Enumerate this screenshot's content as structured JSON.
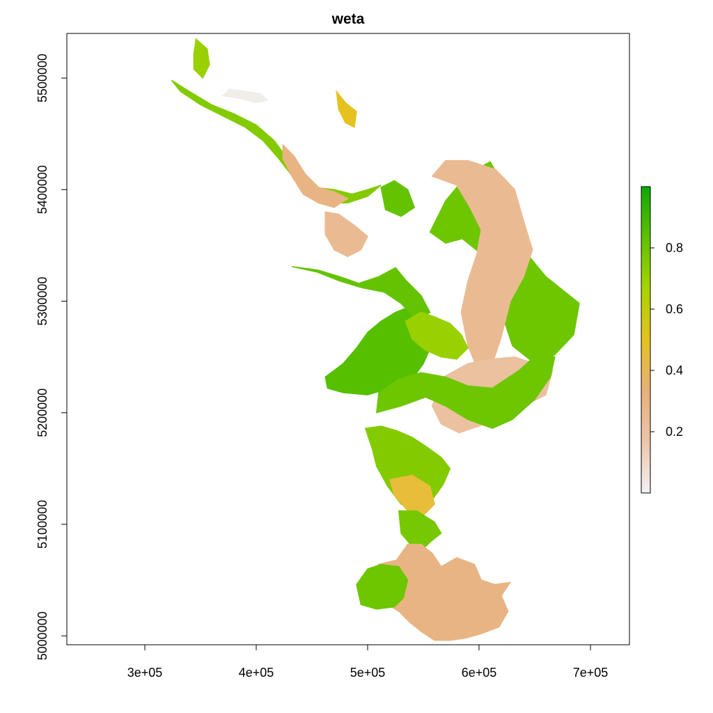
{
  "title": "weta",
  "x_axis": {
    "range": [
      230000,
      735000
    ],
    "ticks": [
      {
        "value": 300000,
        "label": "3e+05"
      },
      {
        "value": 400000,
        "label": "4e+05"
      },
      {
        "value": 500000,
        "label": "5e+05"
      },
      {
        "value": 600000,
        "label": "6e+05"
      },
      {
        "value": 700000,
        "label": "7e+05"
      }
    ]
  },
  "y_axis": {
    "range": [
      4992000,
      5540000
    ],
    "ticks": [
      {
        "value": 5000000,
        "label": "5000000"
      },
      {
        "value": 5100000,
        "label": "5100000"
      },
      {
        "value": 5200000,
        "label": "5200000"
      },
      {
        "value": 5300000,
        "label": "5300000"
      },
      {
        "value": 5400000,
        "label": "5400000"
      },
      {
        "value": 5500000,
        "label": "5500000"
      }
    ]
  },
  "legend": {
    "position": "right",
    "range": [
      0,
      1
    ],
    "ticks": [
      {
        "value": 0.2,
        "label": "0.2"
      },
      {
        "value": 0.4,
        "label": "0.4"
      },
      {
        "value": 0.6,
        "label": "0.6"
      },
      {
        "value": 0.8,
        "label": "0.8"
      }
    ],
    "colors": [
      "#f2f2f2",
      "#ecc5aa",
      "#e8b07a",
      "#e6c21f",
      "#a8d400",
      "#5ec200",
      "#0ea800"
    ]
  },
  "colors": {
    "low": "#ebb69a",
    "mid": "#c6cf3a",
    "high": "#2aa80e",
    "very_low": "#eedcd6"
  },
  "chart_data": {
    "type": "heatmap",
    "title": "weta",
    "xlabel": "",
    "ylabel": "",
    "xlim": [
      230000,
      735000
    ],
    "ylim": [
      4992000,
      5540000
    ],
    "value_range": [
      0,
      1
    ],
    "grid": false,
    "legend": "right",
    "regions": [
      {
        "value": 0.85,
        "polygon": [
          [
            462000,
            5232000
          ],
          [
            478000,
            5244000
          ],
          [
            490000,
            5258000
          ],
          [
            500000,
            5272000
          ],
          [
            512000,
            5282000
          ],
          [
            525000,
            5290000
          ],
          [
            540000,
            5296000
          ],
          [
            556000,
            5280000
          ],
          [
            558000,
            5262000
          ],
          [
            550000,
            5244000
          ],
          [
            540000,
            5230000
          ],
          [
            520000,
            5222000
          ],
          [
            500000,
            5216000
          ],
          [
            478000,
            5218000
          ],
          [
            464000,
            5222000
          ]
        ]
      },
      {
        "value": 0.82,
        "polygon": [
          [
            432000,
            5331000
          ],
          [
            455000,
            5328000
          ],
          [
            475000,
            5322000
          ],
          [
            492000,
            5316000
          ],
          [
            510000,
            5322000
          ],
          [
            525000,
            5330000
          ],
          [
            535000,
            5318000
          ],
          [
            548000,
            5305000
          ],
          [
            556000,
            5290000
          ],
          [
            545000,
            5282000
          ],
          [
            530000,
            5298000
          ],
          [
            515000,
            5308000
          ],
          [
            495000,
            5312000
          ],
          [
            475000,
            5318000
          ],
          [
            455000,
            5326000
          ]
        ]
      },
      {
        "value": 0.8,
        "polygon": [
          [
            556000,
            5362000
          ],
          [
            570000,
            5390000
          ],
          [
            590000,
            5414000
          ],
          [
            610000,
            5425000
          ],
          [
            622000,
            5404000
          ],
          [
            628000,
            5372000
          ],
          [
            640000,
            5346000
          ],
          [
            660000,
            5322000
          ],
          [
            690000,
            5298000
          ],
          [
            685000,
            5270000
          ],
          [
            668000,
            5252000
          ],
          [
            650000,
            5244000
          ],
          [
            630000,
            5260000
          ],
          [
            620000,
            5290000
          ],
          [
            610000,
            5320000
          ],
          [
            600000,
            5344000
          ],
          [
            585000,
            5356000
          ],
          [
            570000,
            5352000
          ]
        ]
      },
      {
        "value": 0.25,
        "polygon": [
          [
            558000,
            5412000
          ],
          [
            570000,
            5426000
          ],
          [
            590000,
            5426000
          ],
          [
            615000,
            5418000
          ],
          [
            632000,
            5400000
          ],
          [
            640000,
            5372000
          ],
          [
            648000,
            5346000
          ],
          [
            640000,
            5322000
          ],
          [
            628000,
            5300000
          ],
          [
            620000,
            5268000
          ],
          [
            612000,
            5244000
          ],
          [
            600000,
            5236000
          ],
          [
            590000,
            5260000
          ],
          [
            584000,
            5290000
          ],
          [
            590000,
            5318000
          ],
          [
            598000,
            5342000
          ],
          [
            602000,
            5364000
          ],
          [
            592000,
            5384000
          ],
          [
            580000,
            5404000
          ]
        ]
      },
      {
        "value": 0.2,
        "polygon": [
          [
            568000,
            5232000
          ],
          [
            590000,
            5244000
          ],
          [
            612000,
            5248000
          ],
          [
            632000,
            5250000
          ],
          [
            650000,
            5244000
          ],
          [
            666000,
            5238000
          ],
          [
            660000,
            5216000
          ],
          [
            640000,
            5206000
          ],
          [
            620000,
            5196000
          ],
          [
            600000,
            5188000
          ],
          [
            582000,
            5182000
          ],
          [
            566000,
            5190000
          ],
          [
            558000,
            5206000
          ]
        ]
      },
      {
        "value": 0.8,
        "polygon": [
          [
            508000,
            5200000
          ],
          [
            530000,
            5206000
          ],
          [
            552000,
            5214000
          ],
          [
            570000,
            5206000
          ],
          [
            590000,
            5194000
          ],
          [
            612000,
            5186000
          ],
          [
            630000,
            5194000
          ],
          [
            650000,
            5212000
          ],
          [
            664000,
            5232000
          ],
          [
            668000,
            5250000
          ],
          [
            654000,
            5254000
          ],
          [
            636000,
            5238000
          ],
          [
            612000,
            5222000
          ],
          [
            590000,
            5224000
          ],
          [
            570000,
            5232000
          ],
          [
            548000,
            5236000
          ],
          [
            528000,
            5230000
          ],
          [
            510000,
            5218000
          ]
        ]
      },
      {
        "value": 0.75,
        "polygon": [
          [
            498000,
            5186000
          ],
          [
            512000,
            5188000
          ],
          [
            526000,
            5184000
          ],
          [
            540000,
            5178000
          ],
          [
            552000,
            5170000
          ],
          [
            566000,
            5160000
          ],
          [
            574000,
            5150000
          ],
          [
            568000,
            5136000
          ],
          [
            558000,
            5122000
          ],
          [
            545000,
            5112000
          ],
          [
            530000,
            5118000
          ],
          [
            518000,
            5134000
          ],
          [
            508000,
            5152000
          ],
          [
            504000,
            5168000
          ]
        ]
      },
      {
        "value": 0.45,
        "polygon": [
          [
            520000,
            5140000
          ],
          [
            540000,
            5144000
          ],
          [
            556000,
            5134000
          ],
          [
            560000,
            5118000
          ],
          [
            550000,
            5108000
          ],
          [
            536000,
            5112000
          ],
          [
            524000,
            5126000
          ]
        ]
      },
      {
        "value": 0.78,
        "polygon": [
          [
            528000,
            5112000
          ],
          [
            544000,
            5112000
          ],
          [
            560000,
            5102000
          ],
          [
            566000,
            5092000
          ],
          [
            556000,
            5084000
          ],
          [
            548000,
            5076000
          ],
          [
            540000,
            5080000
          ],
          [
            530000,
            5092000
          ]
        ]
      },
      {
        "value": 0.3,
        "polygon": [
          [
            536000,
            5082000
          ],
          [
            548000,
            5082000
          ],
          [
            558000,
            5074000
          ],
          [
            566000,
            5062000
          ],
          [
            580000,
            5070000
          ],
          [
            596000,
            5064000
          ],
          [
            602000,
            5050000
          ],
          [
            614000,
            5046000
          ],
          [
            628000,
            5048000
          ],
          [
            620000,
            5036000
          ],
          [
            626000,
            5022000
          ],
          [
            618000,
            5008000
          ],
          [
            602000,
            5002000
          ],
          [
            588000,
            4998000
          ],
          [
            574000,
            4996000
          ],
          [
            560000,
            4996000
          ],
          [
            548000,
            5004000
          ],
          [
            538000,
            5012000
          ],
          [
            528000,
            5022000
          ],
          [
            514000,
            5030000
          ],
          [
            506000,
            5044000
          ],
          [
            502000,
            5058000
          ],
          [
            510000,
            5064000
          ],
          [
            526000,
            5068000
          ]
        ]
      },
      {
        "value": 0.8,
        "polygon": [
          [
            490000,
            5046000
          ],
          [
            500000,
            5060000
          ],
          [
            512000,
            5064000
          ],
          [
            528000,
            5062000
          ],
          [
            536000,
            5050000
          ],
          [
            532000,
            5034000
          ],
          [
            524000,
            5026000
          ],
          [
            508000,
            5024000
          ],
          [
            494000,
            5028000
          ]
        ]
      },
      {
        "value": 0.75,
        "polygon": [
          [
            324000,
            5498000
          ],
          [
            340000,
            5488000
          ],
          [
            360000,
            5476000
          ],
          [
            380000,
            5468000
          ],
          [
            400000,
            5458000
          ],
          [
            416000,
            5444000
          ],
          [
            428000,
            5428000
          ],
          [
            440000,
            5412000
          ],
          [
            452000,
            5402000
          ],
          [
            470000,
            5400000
          ],
          [
            486000,
            5396000
          ],
          [
            500000,
            5400000
          ],
          [
            512000,
            5404000
          ],
          [
            500000,
            5394000
          ],
          [
            482000,
            5388000
          ],
          [
            462000,
            5388000
          ],
          [
            446000,
            5396000
          ],
          [
            434000,
            5410000
          ],
          [
            420000,
            5428000
          ],
          [
            406000,
            5444000
          ],
          [
            390000,
            5456000
          ],
          [
            370000,
            5466000
          ],
          [
            350000,
            5476000
          ],
          [
            332000,
            5488000
          ]
        ]
      },
      {
        "value": 0.3,
        "polygon": [
          [
            424000,
            5440000
          ],
          [
            434000,
            5430000
          ],
          [
            444000,
            5414000
          ],
          [
            456000,
            5402000
          ],
          [
            470000,
            5398000
          ],
          [
            482000,
            5392000
          ],
          [
            470000,
            5384000
          ],
          [
            456000,
            5388000
          ],
          [
            442000,
            5396000
          ],
          [
            432000,
            5412000
          ],
          [
            424000,
            5428000
          ]
        ]
      },
      {
        "value": 0.25,
        "polygon": [
          [
            462000,
            5380000
          ],
          [
            474000,
            5378000
          ],
          [
            488000,
            5368000
          ],
          [
            500000,
            5358000
          ],
          [
            494000,
            5346000
          ],
          [
            482000,
            5340000
          ],
          [
            470000,
            5346000
          ],
          [
            462000,
            5360000
          ]
        ]
      },
      {
        "value": 0.7,
        "polygon": [
          [
            346000,
            5535000
          ],
          [
            356000,
            5526000
          ],
          [
            358000,
            5512000
          ],
          [
            352000,
            5500000
          ],
          [
            344000,
            5508000
          ],
          [
            344000,
            5522000
          ]
        ]
      },
      {
        "value": 0.02,
        "polygon": [
          [
            370000,
            5484000
          ],
          [
            384000,
            5482000
          ],
          [
            400000,
            5478000
          ],
          [
            410000,
            5480000
          ],
          [
            404000,
            5486000
          ],
          [
            390000,
            5488000
          ],
          [
            376000,
            5490000
          ]
        ]
      },
      {
        "value": 0.5,
        "polygon": [
          [
            472000,
            5488000
          ],
          [
            480000,
            5478000
          ],
          [
            490000,
            5470000
          ],
          [
            488000,
            5456000
          ],
          [
            480000,
            5460000
          ],
          [
            474000,
            5472000
          ]
        ]
      },
      {
        "value": 0.82,
        "polygon": [
          [
            512000,
            5402000
          ],
          [
            524000,
            5408000
          ],
          [
            536000,
            5400000
          ],
          [
            542000,
            5384000
          ],
          [
            530000,
            5376000
          ],
          [
            516000,
            5382000
          ]
        ]
      },
      {
        "value": 0.7,
        "polygon": [
          [
            534000,
            5282000
          ],
          [
            548000,
            5290000
          ],
          [
            560000,
            5286000
          ],
          [
            574000,
            5280000
          ],
          [
            584000,
            5270000
          ],
          [
            590000,
            5258000
          ],
          [
            580000,
            5248000
          ],
          [
            566000,
            5250000
          ],
          [
            552000,
            5256000
          ],
          [
            540000,
            5266000
          ]
        ]
      }
    ]
  }
}
